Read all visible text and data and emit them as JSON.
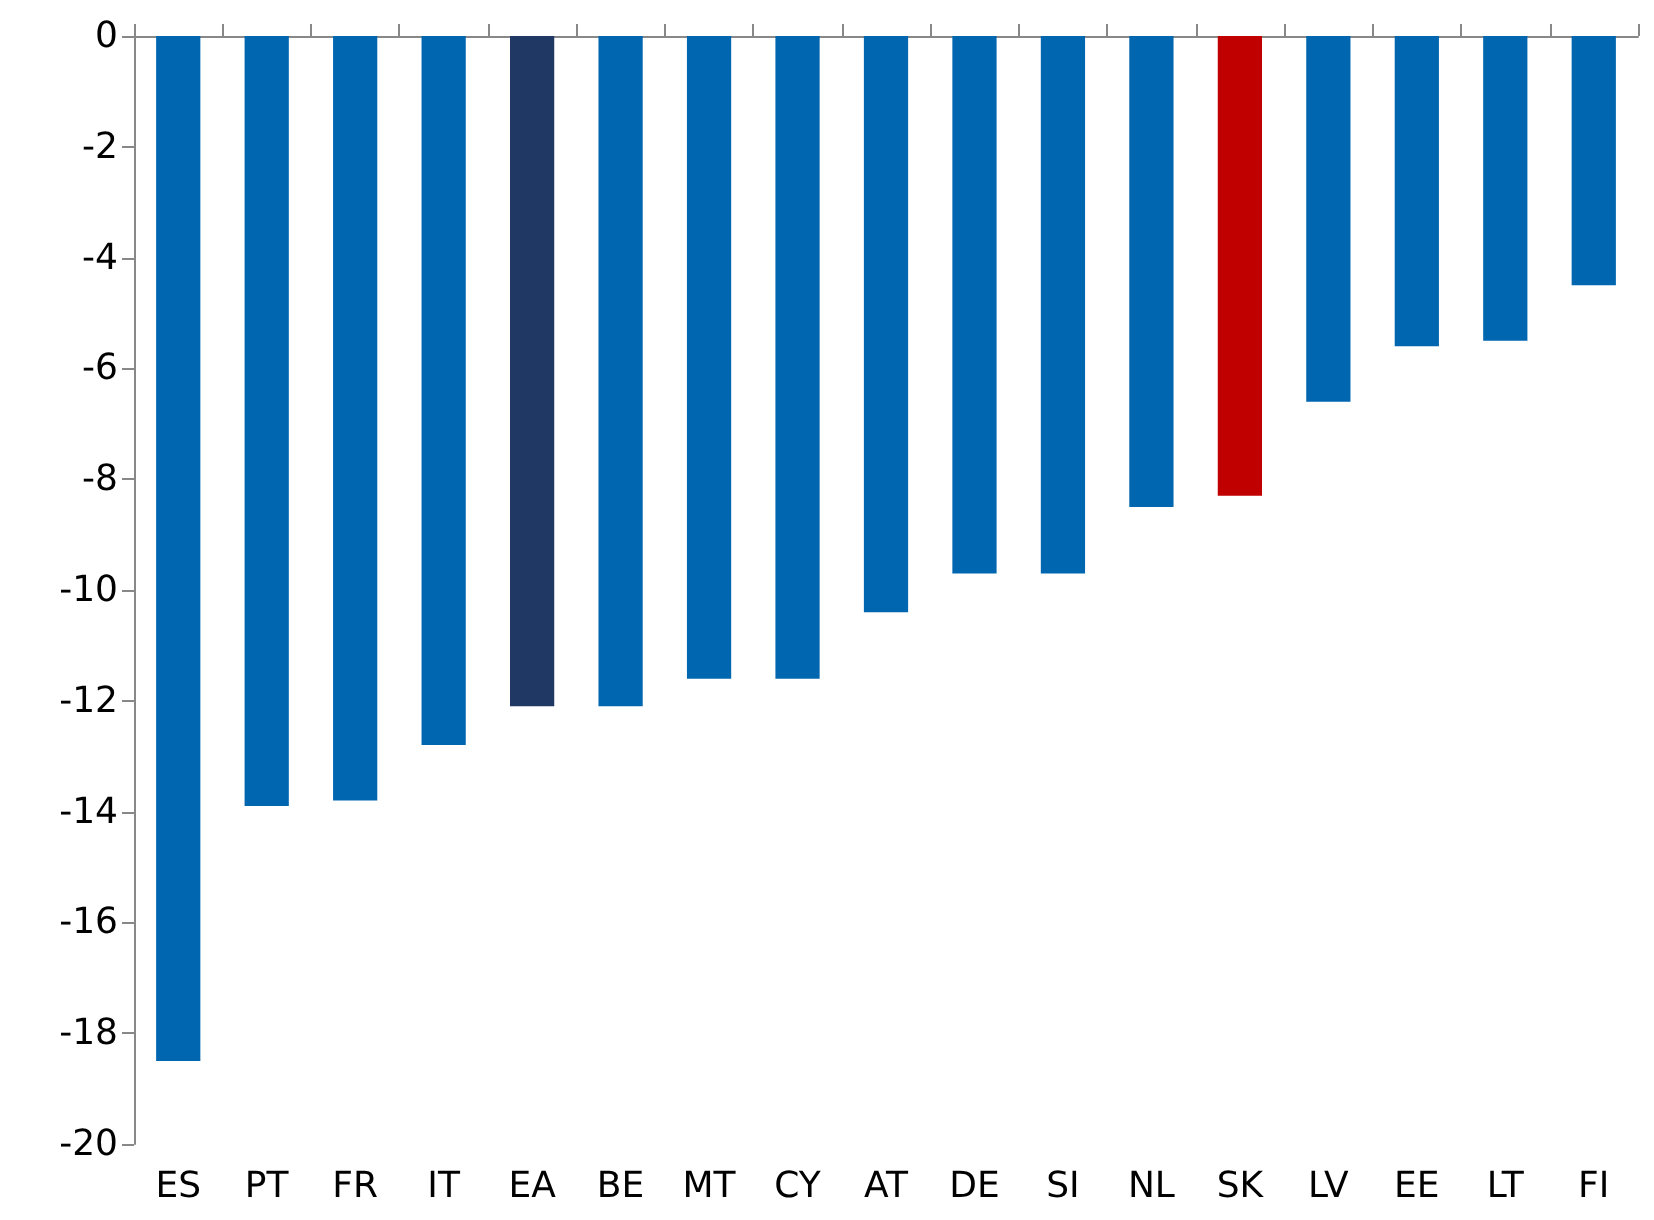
{
  "chart_data": {
    "type": "bar",
    "categories": [
      "ES",
      "PT",
      "FR",
      "IT",
      "EA",
      "BE",
      "MT",
      "CY",
      "AT",
      "DE",
      "SI",
      "NL",
      "SK",
      "LV",
      "EE",
      "LT",
      "FI"
    ],
    "values": [
      -18.5,
      -13.9,
      -13.8,
      -12.8,
      -12.1,
      -12.1,
      -11.6,
      -11.6,
      -10.4,
      -9.7,
      -9.7,
      -8.5,
      -8.3,
      -6.6,
      -5.6,
      -5.5,
      -4.5
    ],
    "colors": [
      "#0066b0",
      "#0066b0",
      "#0066b0",
      "#0066b0",
      "#1f3864",
      "#0066b0",
      "#0066b0",
      "#0066b0",
      "#0066b0",
      "#0066b0",
      "#0066b0",
      "#0066b0",
      "#c00000",
      "#0066b0",
      "#0066b0",
      "#0066b0",
      "#0066b0"
    ],
    "ylim": [
      -20,
      0
    ],
    "yticks": [
      -20,
      -18,
      -16,
      -14,
      -12,
      -10,
      -8,
      -6,
      -4,
      -2,
      0
    ]
  }
}
